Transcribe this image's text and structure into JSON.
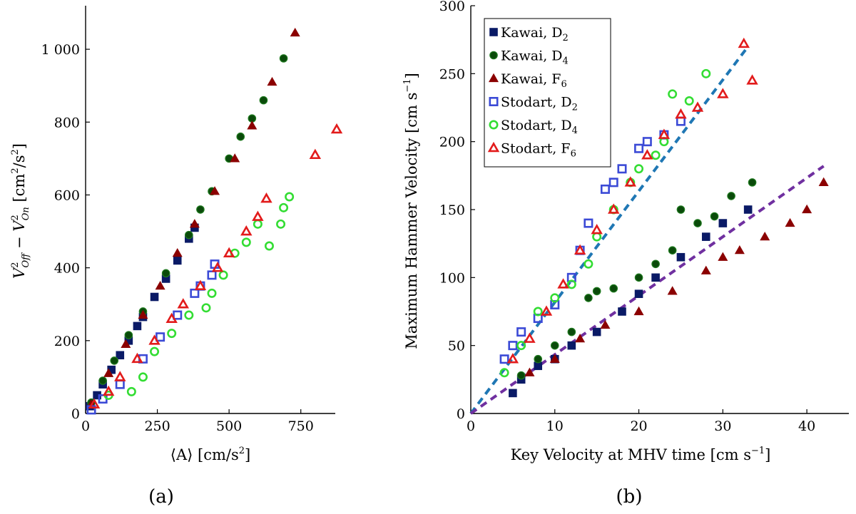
{
  "chart_data": [
    {
      "type": "scatter",
      "panel_label": "(a)",
      "xlabel": {
        "main": "⟨A⟩ [cm/s",
        "sup": "2",
        "end": "]"
      },
      "ylabel": {
        "base1": "V",
        "sup1": "2",
        "sub1": "Off",
        "mid": " − V",
        "sup2": "2",
        "sub2": "On",
        "unit": " [cm",
        "unitsup1": "2",
        "unitmid": "/s",
        "unitsup2": "2",
        "unitend": "]"
      },
      "xlim": [
        0,
        875
      ],
      "ylim": [
        0,
        1100
      ],
      "xticks": [
        0,
        250,
        500,
        750
      ],
      "xtick_labels": [
        "0",
        "250",
        "500",
        "750"
      ],
      "yticks": [
        0,
        200,
        400,
        600,
        800,
        1000
      ],
      "ytick_labels": [
        "0",
        "200",
        "400",
        "600",
        "800",
        "1 000"
      ],
      "series": [
        {
          "name": "Kawai, D2",
          "marker": "square",
          "fill": "#0a1a66",
          "stroke": "#0a1a66",
          "points": [
            [
              15,
              20
            ],
            [
              40,
              50
            ],
            [
              60,
              80
            ],
            [
              90,
              120
            ],
            [
              120,
              160
            ],
            [
              150,
              200
            ],
            [
              180,
              240
            ],
            [
              200,
              265
            ],
            [
              240,
              320
            ],
            [
              280,
              370
            ],
            [
              320,
              420
            ],
            [
              360,
              480
            ],
            [
              380,
              510
            ]
          ]
        },
        {
          "name": "Kawai, D4",
          "marker": "circle",
          "fill": "#0a4a0a",
          "stroke": "#1f7a1f",
          "points": [
            [
              20,
              30
            ],
            [
              60,
              90
            ],
            [
              100,
              145
            ],
            [
              150,
              215
            ],
            [
              200,
              280
            ],
            [
              280,
              385
            ],
            [
              360,
              490
            ],
            [
              400,
              560
            ],
            [
              440,
              610
            ],
            [
              500,
              700
            ],
            [
              540,
              760
            ],
            [
              580,
              810
            ],
            [
              620,
              860
            ],
            [
              690,
              975
            ]
          ]
        },
        {
          "name": "Kawai, F6",
          "marker": "triangle",
          "fill": "#8b0000",
          "stroke": "#8b0000",
          "points": [
            [
              20,
              25
            ],
            [
              80,
              110
            ],
            [
              140,
              190
            ],
            [
              200,
              270
            ],
            [
              260,
              350
            ],
            [
              320,
              440
            ],
            [
              380,
              520
            ],
            [
              450,
              610
            ],
            [
              520,
              700
            ],
            [
              580,
              790
            ],
            [
              650,
              910
            ],
            [
              730,
              1045
            ]
          ]
        },
        {
          "name": "Stodart, D2",
          "marker": "square",
          "fill": "none",
          "stroke": "#3b4ad6",
          "points": [
            [
              20,
              10
            ],
            [
              60,
              40
            ],
            [
              120,
              80
            ],
            [
              200,
              150
            ],
            [
              260,
              210
            ],
            [
              320,
              270
            ],
            [
              380,
              330
            ],
            [
              400,
              350
            ],
            [
              440,
              380
            ],
            [
              450,
              410
            ]
          ]
        },
        {
          "name": "Stodart, D4",
          "marker": "circle",
          "fill": "none",
          "stroke": "#33dd33",
          "points": [
            [
              80,
              50
            ],
            [
              160,
              60
            ],
            [
              200,
              100
            ],
            [
              240,
              170
            ],
            [
              300,
              220
            ],
            [
              360,
              270
            ],
            [
              420,
              290
            ],
            [
              440,
              330
            ],
            [
              480,
              380
            ],
            [
              520,
              440
            ],
            [
              560,
              470
            ],
            [
              600,
              520
            ],
            [
              640,
              460
            ],
            [
              680,
              520
            ],
            [
              690,
              565
            ],
            [
              710,
              595
            ]
          ]
        },
        {
          "name": "Stodart, F6",
          "marker": "triangle",
          "fill": "none",
          "stroke": "#e21b1b",
          "points": [
            [
              30,
              25
            ],
            [
              80,
              60
            ],
            [
              120,
              100
            ],
            [
              180,
              150
            ],
            [
              240,
              200
            ],
            [
              300,
              260
            ],
            [
              340,
              300
            ],
            [
              400,
              350
            ],
            [
              460,
              400
            ],
            [
              500,
              440
            ],
            [
              560,
              500
            ],
            [
              600,
              540
            ],
            [
              630,
              590
            ],
            [
              800,
              710
            ],
            [
              875,
              780
            ]
          ]
        }
      ]
    },
    {
      "type": "scatter",
      "panel_label": "(b)",
      "xlabel": {
        "main": "Key Velocity at MHV time [cm s",
        "sup": "−1",
        "end": "]"
      },
      "ylabel": {
        "main": "Maximum Hammer Velocity [cm s",
        "sup": "−1",
        "end": "]"
      },
      "xlim": [
        0,
        45
      ],
      "ylim": [
        0,
        300
      ],
      "xticks": [
        0,
        10,
        20,
        30,
        40
      ],
      "xtick_labels": [
        "0",
        "10",
        "20",
        "30",
        "40"
      ],
      "yticks": [
        0,
        50,
        100,
        150,
        200,
        250,
        300
      ],
      "ytick_labels": [
        "0",
        "50",
        "100",
        "150",
        "200",
        "250",
        "300"
      ],
      "fit_lines": [
        {
          "name": "fit-stodart",
          "color": "#1f77b4",
          "x": [
            0,
            33
          ],
          "y": [
            0,
            270
          ]
        },
        {
          "name": "fit-kawai",
          "color": "#7030a0",
          "x": [
            0,
            42
          ],
          "y": [
            0,
            182
          ]
        }
      ],
      "legend": {
        "position": "top-left",
        "entries": [
          {
            "base": "Kawai, D",
            "sub": "2",
            "marker": "square",
            "fill": "#0a1a66",
            "stroke": "#0a1a66"
          },
          {
            "base": "Kawai, D",
            "sub": "4",
            "marker": "circle",
            "fill": "#0a4a0a",
            "stroke": "#1f7a1f"
          },
          {
            "base": "Kawai, F",
            "sub": "6",
            "marker": "triangle",
            "fill": "#8b0000",
            "stroke": "#8b0000"
          },
          {
            "base": "Stodart, D",
            "sub": "2",
            "marker": "square",
            "fill": "none",
            "stroke": "#3b4ad6"
          },
          {
            "base": "Stodart, D",
            "sub": "4",
            "marker": "circle",
            "fill": "none",
            "stroke": "#33dd33"
          },
          {
            "base": "Stodart, F",
            "sub": "6",
            "marker": "triangle",
            "fill": "none",
            "stroke": "#e21b1b"
          }
        ]
      },
      "series": [
        {
          "name": "Kawai, D2",
          "marker": "square",
          "fill": "#0a1a66",
          "stroke": "#0a1a66",
          "points": [
            [
              5,
              15
            ],
            [
              6,
              25
            ],
            [
              8,
              35
            ],
            [
              10,
              40
            ],
            [
              12,
              50
            ],
            [
              15,
              60
            ],
            [
              18,
              75
            ],
            [
              20,
              88
            ],
            [
              22,
              100
            ],
            [
              25,
              115
            ],
            [
              28,
              130
            ],
            [
              30,
              140
            ],
            [
              33,
              150
            ]
          ]
        },
        {
          "name": "Kawai, D4",
          "marker": "circle",
          "fill": "#0a4a0a",
          "stroke": "#1f7a1f",
          "points": [
            [
              6,
              28
            ],
            [
              8,
              40
            ],
            [
              10,
              50
            ],
            [
              12,
              60
            ],
            [
              14,
              85
            ],
            [
              15,
              90
            ],
            [
              17,
              92
            ],
            [
              20,
              100
            ],
            [
              22,
              110
            ],
            [
              24,
              120
            ],
            [
              25,
              150
            ],
            [
              27,
              140
            ],
            [
              29,
              145
            ],
            [
              31,
              160
            ],
            [
              33.5,
              170
            ]
          ]
        },
        {
          "name": "Kawai, F6",
          "marker": "triangle",
          "fill": "#8b0000",
          "stroke": "#8b0000",
          "points": [
            [
              7,
              30
            ],
            [
              10,
              40
            ],
            [
              13,
              55
            ],
            [
              16,
              65
            ],
            [
              20,
              75
            ],
            [
              24,
              90
            ],
            [
              28,
              105
            ],
            [
              30,
              115
            ],
            [
              32,
              120
            ],
            [
              35,
              130
            ],
            [
              38,
              140
            ],
            [
              40,
              150
            ],
            [
              42,
              170
            ]
          ]
        },
        {
          "name": "Stodart, D2",
          "marker": "square",
          "fill": "none",
          "stroke": "#3b4ad6",
          "points": [
            [
              4,
              40
            ],
            [
              5,
              50
            ],
            [
              6,
              60
            ],
            [
              8,
              70
            ],
            [
              10,
              80
            ],
            [
              12,
              100
            ],
            [
              13,
              120
            ],
            [
              14,
              140
            ],
            [
              16,
              165
            ],
            [
              17,
              170
            ],
            [
              18,
              180
            ],
            [
              20,
              195
            ],
            [
              21,
              200
            ],
            [
              23,
              205
            ],
            [
              25,
              215
            ]
          ]
        },
        {
          "name": "Stodart, D4",
          "marker": "circle",
          "fill": "none",
          "stroke": "#33dd33",
          "points": [
            [
              4,
              30
            ],
            [
              6,
              50
            ],
            [
              8,
              75
            ],
            [
              10,
              85
            ],
            [
              12,
              95
            ],
            [
              14,
              110
            ],
            [
              15,
              130
            ],
            [
              17,
              150
            ],
            [
              19,
              170
            ],
            [
              20,
              180
            ],
            [
              22,
              190
            ],
            [
              23,
              200
            ],
            [
              24,
              235
            ],
            [
              26,
              230
            ],
            [
              28,
              250
            ]
          ]
        },
        {
          "name": "Stodart, F6",
          "marker": "triangle",
          "fill": "none",
          "stroke": "#e21b1b",
          "points": [
            [
              5,
              40
            ],
            [
              7,
              55
            ],
            [
              9,
              75
            ],
            [
              11,
              95
            ],
            [
              13,
              120
            ],
            [
              15,
              135
            ],
            [
              17,
              150
            ],
            [
              19,
              170
            ],
            [
              21,
              190
            ],
            [
              23,
              205
            ],
            [
              25,
              220
            ],
            [
              27,
              225
            ],
            [
              30,
              235
            ],
            [
              32.5,
              272
            ],
            [
              33.5,
              245
            ]
          ]
        }
      ]
    }
  ]
}
